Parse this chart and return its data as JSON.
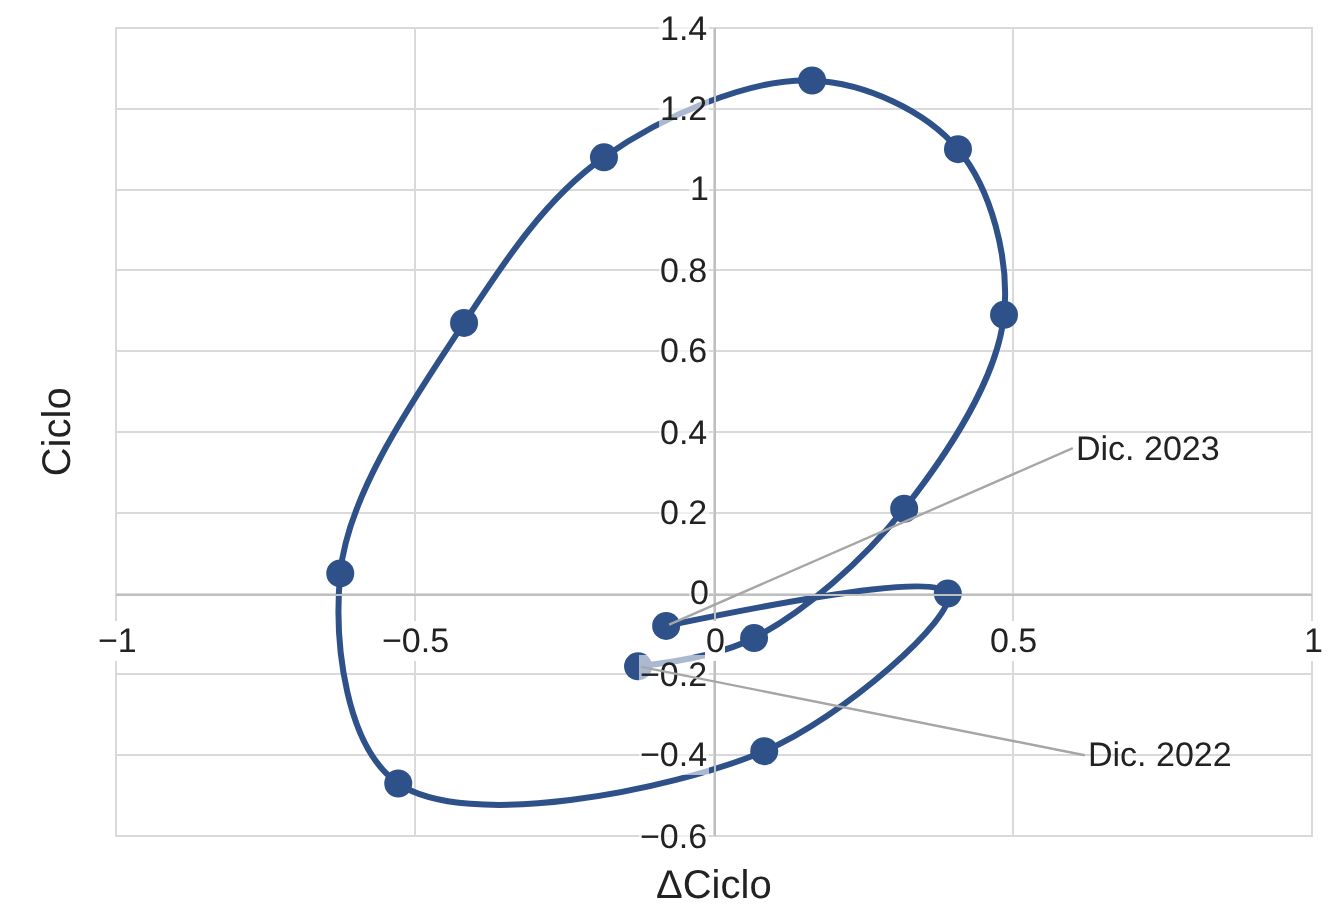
{
  "chart_data": {
    "type": "line",
    "xlabel": "ΔCiclo",
    "ylabel": "Ciclo",
    "x": [
      -0.127,
      0.067,
      0.318,
      0.485,
      0.408,
      0.164,
      -0.184,
      -0.418,
      -0.625,
      -0.528,
      0.084,
      0.391,
      -0.08
    ],
    "series": [
      {
        "color": "#2e5189",
        "values": [
          -0.18,
          -0.11,
          0.21,
          0.69,
          1.1,
          1.27,
          1.08,
          0.67,
          0.05,
          -0.47,
          -0.39,
          0.0,
          -0.08
        ]
      }
    ],
    "xlim": [
      -1,
      1
    ],
    "xticks": [
      -1,
      -0.5,
      0,
      0.5,
      1
    ],
    "ylim": [
      -0.6,
      1.4
    ],
    "yticks": [
      -0.6,
      -0.4,
      -0.2,
      0,
      0.2,
      0.4,
      0.6,
      0.8,
      1,
      1.2,
      1.4
    ],
    "grid": true,
    "marker": "circle",
    "line_style": "solid",
    "legend": false,
    "annotations": [
      {
        "text": "Dic. 2023",
        "x": -0.08,
        "y": -0.08
      },
      {
        "text": "Dic. 2022",
        "x": -0.127,
        "y": -0.18
      }
    ]
  }
}
